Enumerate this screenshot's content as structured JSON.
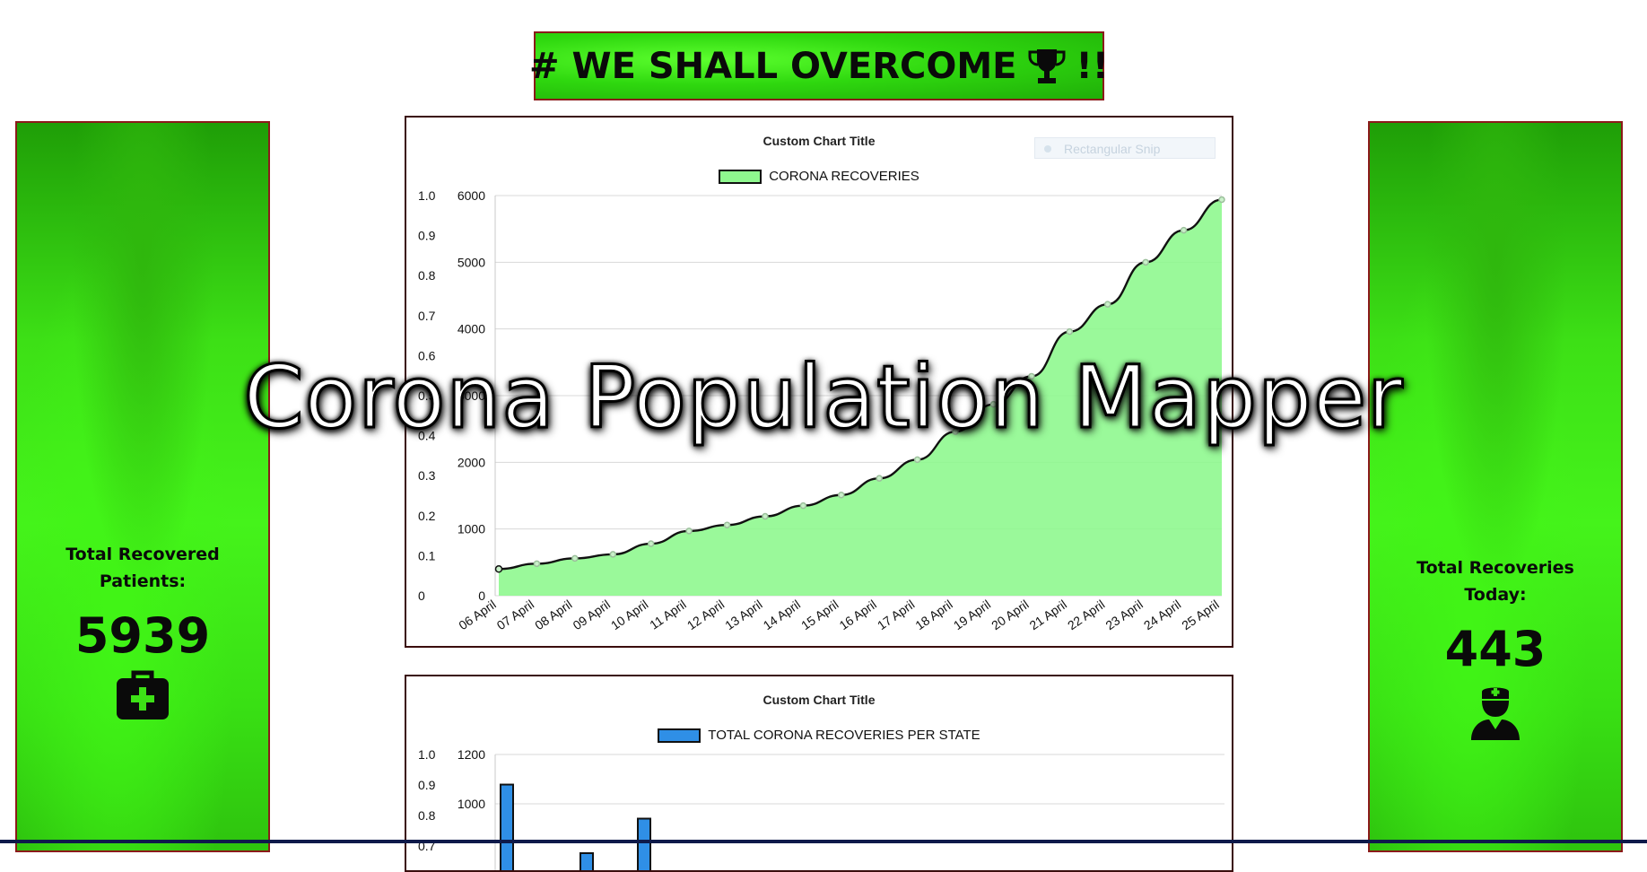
{
  "banner": {
    "text": "# WE SHALL OVERCOME",
    "suffix": "!!",
    "icon": "trophy-icon"
  },
  "left_card": {
    "label": "Total Recovered Patients:",
    "value": "5939",
    "icon": "medical-kit-icon"
  },
  "right_card": {
    "label": "Total Recoveries Today:",
    "value": "443",
    "icon": "nurse-icon"
  },
  "overlay_title": "Corona Population Mapper",
  "snip_tooltip": "Rectangular Snip",
  "colors": {
    "banner_green": "#2fd80f",
    "line_fill": "#8ff88f",
    "bar_fill": "#2f8fe6",
    "card_border": "#8b1a1a"
  },
  "chart_data": [
    {
      "type": "area",
      "title": "Custom Chart Title",
      "legend": "CORONA RECOVERIES",
      "x": [
        "06 April",
        "07 April",
        "08 April",
        "09 April",
        "10 April",
        "11 April",
        "12 April",
        "13 April",
        "14 April",
        "15 April",
        "16 April",
        "17 April",
        "18 April",
        "19 April",
        "20 April",
        "21 April",
        "22 April",
        "23 April",
        "24 April",
        "25 April"
      ],
      "values": [
        400,
        480,
        560,
        620,
        780,
        970,
        1060,
        1190,
        1350,
        1510,
        1760,
        2040,
        2460,
        2870,
        3290,
        3960,
        4370,
        5000,
        5480,
        5939
      ],
      "ylim": [
        0,
        6000
      ],
      "y_ticks": [
        "0",
        "1000",
        "2000",
        "3000",
        "4000",
        "5000",
        "6000"
      ],
      "y2_ticks": [
        "1.0",
        "0.9",
        "0.8",
        "0.7",
        "0.6",
        "0.5",
        "0.4",
        "0.3",
        "0.2",
        "0.1",
        "0"
      ],
      "grid": true
    },
    {
      "type": "bar",
      "title": "Custom Chart Title",
      "legend": "TOTAL CORONA RECOVERIES PER STATE",
      "values": [
        1078,
        700,
        800,
        940
      ],
      "ylim": [
        0,
        1200
      ],
      "y_ticks": [
        "1200",
        "1000"
      ],
      "y2_ticks": [
        "1.0",
        "0.9",
        "0.8",
        "0.7"
      ],
      "grid": true
    }
  ]
}
